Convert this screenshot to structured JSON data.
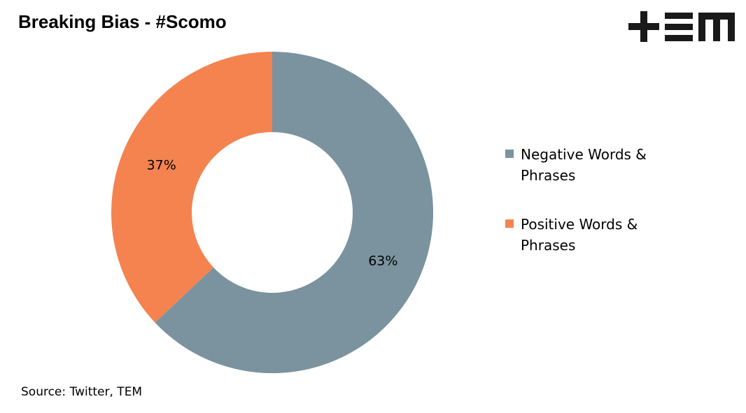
{
  "title": "Breaking Bias - #Scomo",
  "logo": {
    "text": "+EM",
    "color": "#1a1a1a"
  },
  "source": "Source: Twitter, TEM",
  "chart_data": {
    "type": "pie",
    "donut": true,
    "categories": [
      "Negative Words & Phrases",
      "Positive Words & Phrases"
    ],
    "values": [
      63,
      37
    ],
    "data_labels": [
      "63%",
      "37%"
    ],
    "colors": [
      "#7b939f",
      "#f4834f"
    ],
    "legend_position": "right"
  }
}
